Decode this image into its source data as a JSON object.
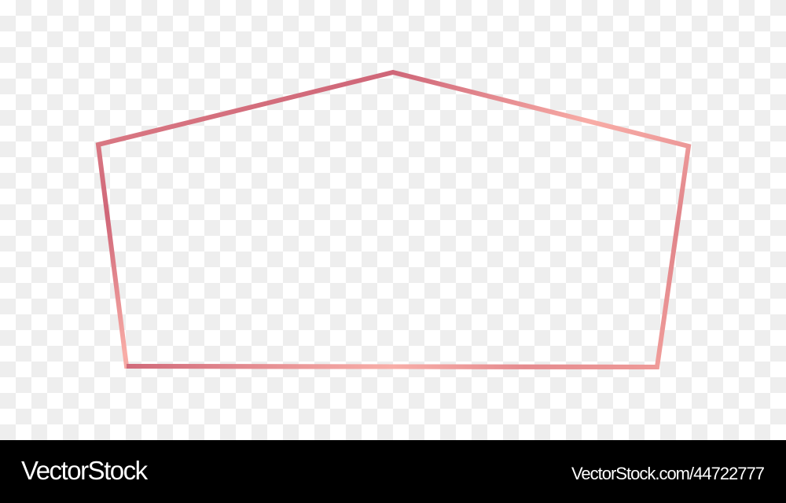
{
  "artwork": {
    "shape": "pentagon-frame",
    "gradient_colors": [
      "#e2878c",
      "#cf6678",
      "#f8aca6",
      "#e0848a",
      "#f2a09c"
    ]
  },
  "watermark": {
    "brand": "VectorStock",
    "reference": "VectorStock.com/44722777"
  }
}
